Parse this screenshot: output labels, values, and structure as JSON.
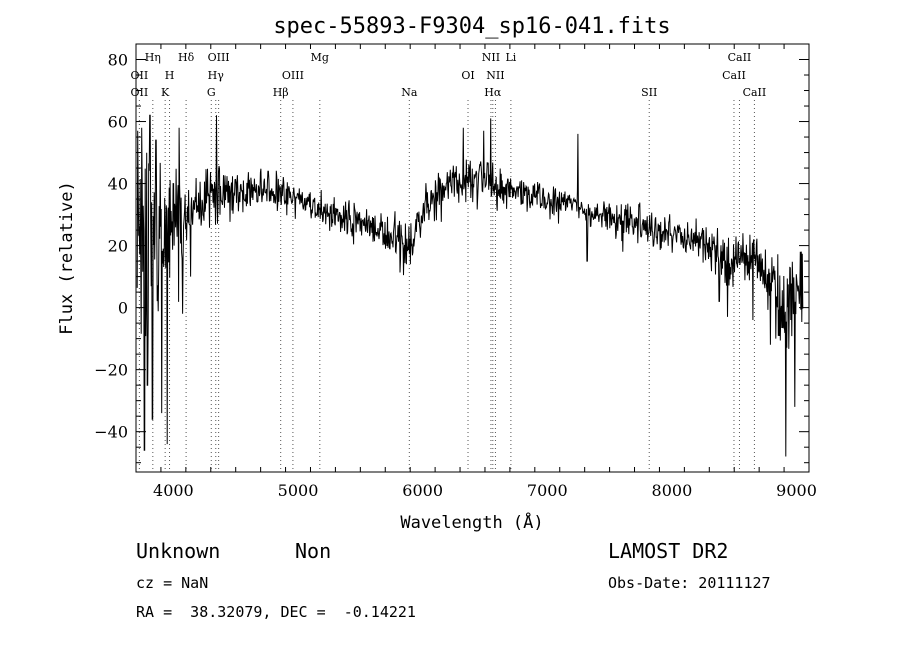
{
  "chart_data": {
    "type": "line",
    "title": "spec-55893-F9304_sp16-041.fits",
    "xlabel": "Wavelength (Å)",
    "ylabel": "Flux (relative)",
    "xlim": [
      3700,
      9100
    ],
    "ylim": [
      -53,
      85
    ],
    "x_ticks": [
      4000,
      5000,
      6000,
      7000,
      8000,
      9000
    ],
    "y_ticks": [
      -40,
      -20,
      0,
      20,
      40,
      60,
      80
    ],
    "grid": false,
    "legend": "none",
    "spectrum_anchors": {
      "x": [
        3710,
        3740,
        3760,
        3790,
        3820,
        3860,
        3900,
        3950,
        4000,
        4050,
        4100,
        4150,
        4200,
        4250,
        4300,
        4350,
        4400,
        4450,
        4500,
        4600,
        4700,
        4800,
        4900,
        5000,
        5100,
        5200,
        5300,
        5400,
        5500,
        5600,
        5700,
        5800,
        5850,
        5890,
        5950,
        6000,
        6100,
        6200,
        6300,
        6400,
        6500,
        6560,
        6600,
        6700,
        6800,
        6900,
        7000,
        7100,
        7200,
        7300,
        7400,
        7500,
        7600,
        7700,
        7800,
        7900,
        8000,
        8100,
        8200,
        8300,
        8400,
        8450,
        8500,
        8550,
        8600,
        8650,
        8700,
        8750,
        8800,
        8850,
        8900,
        8950,
        9000
      ],
      "y": [
        5,
        10,
        15,
        18,
        20,
        22,
        24,
        25,
        26,
        28,
        30,
        31,
        33,
        35,
        35,
        37,
        36,
        38,
        37,
        37,
        38,
        37,
        36,
        34,
        33,
        31,
        29,
        28,
        27,
        26,
        25,
        22,
        18,
        20,
        25,
        31,
        36,
        39,
        40,
        41,
        42,
        42,
        38,
        38,
        37,
        36,
        35,
        33,
        34,
        31,
        29,
        29,
        28,
        27,
        27,
        25,
        24,
        23,
        22,
        20,
        15,
        13,
        14,
        16,
        16,
        14,
        13,
        10,
        8,
        3,
        -3,
        0,
        5
      ]
    },
    "line_markers": [
      {
        "label": "Hη",
        "x": 3835
      },
      {
        "label": "Hδ",
        "x": 4102
      },
      {
        "label": "OIII",
        "x": 4363
      },
      {
        "label": "Mg",
        "x": 5175
      },
      {
        "label": "NII",
        "x": 6548
      },
      {
        "label": "Li",
        "x": 6708
      },
      {
        "label": "CaII",
        "x": 8542
      },
      {
        "label": "OII",
        "x": 3727
      },
      {
        "label": "H",
        "x": 3969
      },
      {
        "label": "Hγ",
        "x": 4340
      },
      {
        "label": "OIII",
        "x": 4959
      },
      {
        "label": "OI",
        "x": 6364
      },
      {
        "label": "NII",
        "x": 6584
      },
      {
        "label": "CaII",
        "x": 8498
      },
      {
        "label": "OII",
        "x": 3727
      },
      {
        "label": "K",
        "x": 3934
      },
      {
        "label": "G",
        "x": 4304
      },
      {
        "label": "Hβ",
        "x": 4861
      },
      {
        "label": "Na",
        "x": 5893
      },
      {
        "label": "Hα",
        "x": 6563
      },
      {
        "label": "SII",
        "x": 7818
      },
      {
        "label": "CaII",
        "x": 8662
      }
    ]
  },
  "info": {
    "class": "Unknown",
    "subclass": "Non",
    "survey": "LAMOST DR2",
    "cz": "cz = NaN",
    "obs_date": "Obs-Date: 20111127",
    "coords": "RA =  38.32079, DEC =  -0.14221"
  }
}
